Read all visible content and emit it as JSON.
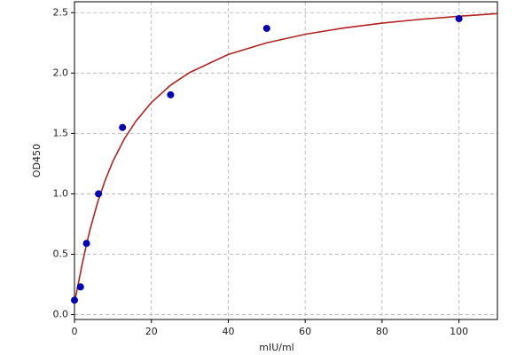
{
  "chart_data": {
    "type": "scatter",
    "xlabel": "mIU/ml",
    "ylabel": "OD450",
    "points": {
      "color": "#0000b4",
      "x": [
        0,
        1.56,
        3.125,
        6.25,
        12.5,
        25,
        50,
        100
      ],
      "values": [
        0.12,
        0.23,
        0.59,
        1.0,
        1.55,
        1.82,
        2.37,
        2.45
      ]
    },
    "curve": {
      "color": "#b22222",
      "x": [
        0,
        1,
        2,
        3,
        4,
        6,
        8,
        10,
        13,
        16,
        20,
        25,
        30,
        40,
        50,
        60,
        70,
        80,
        90,
        100,
        110
      ],
      "values": [
        0.1,
        0.259,
        0.417,
        0.565,
        0.698,
        0.928,
        1.114,
        1.27,
        1.457,
        1.603,
        1.756,
        1.9,
        2.005,
        2.154,
        2.25,
        2.321,
        2.373,
        2.413,
        2.445,
        2.47,
        2.492
      ]
    },
    "xlim": [
      0,
      110
    ],
    "ylim": [
      -0.04,
      2.59
    ],
    "xticks": [
      0,
      20,
      40,
      60,
      80,
      100
    ],
    "yticks": [
      {
        "value": 0,
        "label": "0.0"
      },
      0.5,
      {
        "value": 1,
        "label": "1.0"
      },
      1.5,
      {
        "value": 2,
        "label": "2.0"
      },
      2.5
    ],
    "grid": true
  }
}
